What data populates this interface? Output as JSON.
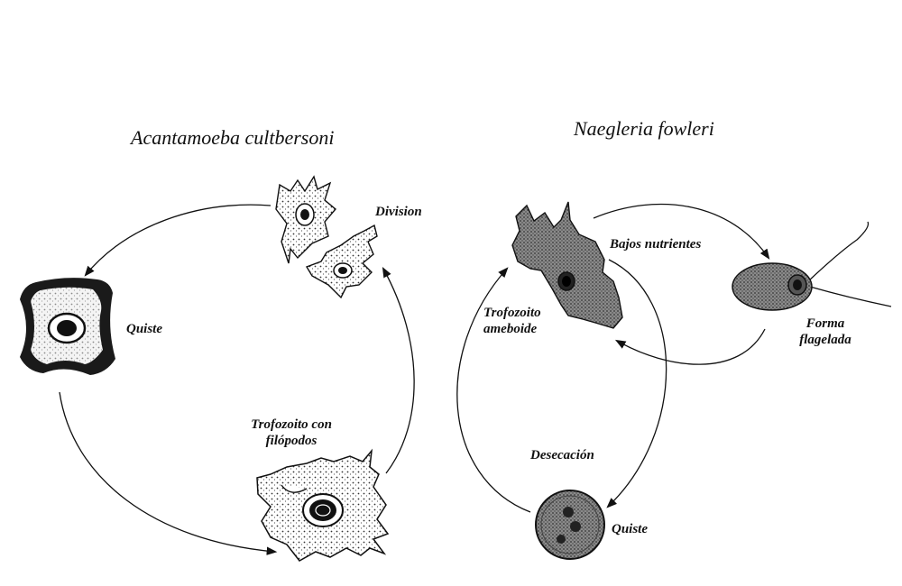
{
  "acanthamoeba": {
    "title": "Acantamoeba cultbersoni",
    "labels": {
      "division": "Division",
      "cyst": "Quiste",
      "trophozoite_line1": "Trofozoito con",
      "trophozoite_line2": "filópodos"
    }
  },
  "naegleria": {
    "title": "Naegleria fowleri",
    "labels": {
      "low_nutrients": "Bajos nutrientes",
      "trophozoite_line1": "Trofozoito",
      "trophozoite_line2": "ameboide",
      "flagellate_line1": "Forma",
      "flagellate_line2": "flagelada",
      "desiccation": "Desecación",
      "cyst": "Quiste"
    }
  }
}
